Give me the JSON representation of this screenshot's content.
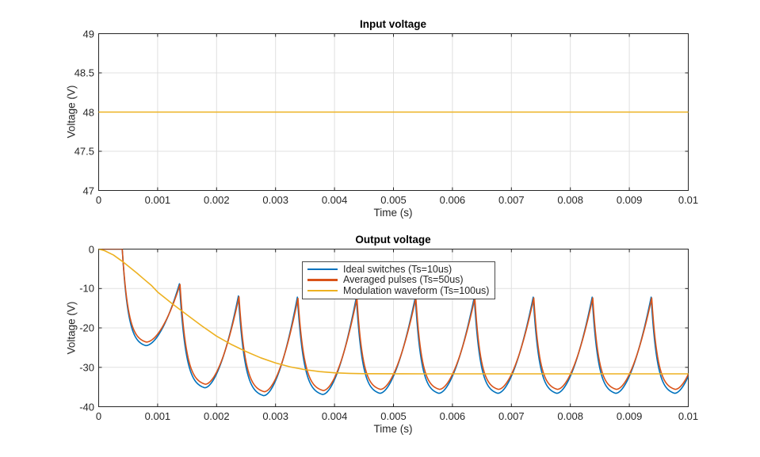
{
  "figure": {
    "background": "#ffffff"
  },
  "colors": {
    "blue": "#0072BD",
    "orange": "#D95319",
    "yellow": "#EDB120",
    "axis": "#262626",
    "grid": "#e0e0e0",
    "text": "#262626"
  },
  "chart_data": [
    {
      "type": "line",
      "title": "Input voltage",
      "xlabel": "Time (s)",
      "ylabel": "Voltage (V)",
      "xlim": [
        0,
        0.01
      ],
      "ylim": [
        47,
        49
      ],
      "grid": true,
      "xticks": [
        0,
        0.001,
        0.002,
        0.003,
        0.004,
        0.005,
        0.006,
        0.007,
        0.008,
        0.009,
        0.01
      ],
      "xtick_labels": [
        "0",
        "0.001",
        "0.002",
        "0.003",
        "0.004",
        "0.005",
        "0.006",
        "0.007",
        "0.008",
        "0.009",
        "0.01"
      ],
      "yticks": [
        47,
        47.5,
        48,
        48.5,
        49
      ],
      "ytick_labels": [
        "47",
        "47.5",
        "48",
        "48.5",
        "49"
      ],
      "series": [
        {
          "name": "Input voltage",
          "color_key": "yellow",
          "constant_value": 48
        }
      ]
    },
    {
      "type": "line",
      "title": "Output voltage",
      "xlabel": "Time (s)",
      "ylabel": "Voltage (V)",
      "xlim": [
        0,
        0.01
      ],
      "ylim": [
        -40,
        0
      ],
      "grid": true,
      "xticks": [
        0,
        0.001,
        0.002,
        0.003,
        0.004,
        0.005,
        0.006,
        0.007,
        0.008,
        0.009,
        0.01
      ],
      "xtick_labels": [
        "0",
        "0.001",
        "0.002",
        "0.003",
        "0.004",
        "0.005",
        "0.006",
        "0.007",
        "0.008",
        "0.009",
        "0.01"
      ],
      "yticks": [
        -40,
        -30,
        -20,
        -10,
        0
      ],
      "ytick_labels": [
        "-40",
        "-30",
        "-20",
        "-10",
        "0"
      ],
      "legend": {
        "position": "north",
        "entries": [
          {
            "label": "Ideal switches (Ts=10us)",
            "color_key": "blue"
          },
          {
            "label": "Averaged pulses (Ts=50us)",
            "color_key": "orange"
          },
          {
            "label": "Modulation waveform (Ts=100us)",
            "color_key": "yellow"
          }
        ]
      },
      "series": [
        {
          "name": "Ideal switches (Ts=10us)",
          "color_key": "blue",
          "waveform": "ripple",
          "anchors": [
            [
              0.0004,
              0
            ],
            [
              0.0008,
              -24.5
            ],
            [
              0.00137,
              -8.8
            ],
            [
              0.0018,
              -35.2
            ],
            [
              0.00237,
              -11.9
            ],
            [
              0.0028,
              -37.2
            ],
            [
              0.00337,
              -12.2
            ],
            [
              0.0038,
              -36.9
            ],
            [
              0.00437,
              -12.2
            ],
            [
              0.00477,
              -36.6
            ],
            [
              0.00537,
              -12.2
            ],
            [
              0.00577,
              -36.6
            ],
            [
              0.00637,
              -12.2
            ],
            [
              0.00677,
              -36.6
            ],
            [
              0.00737,
              -12.2
            ],
            [
              0.00777,
              -36.6
            ],
            [
              0.00837,
              -12.2
            ],
            [
              0.00877,
              -36.6
            ],
            [
              0.00937,
              -12.2
            ],
            [
              0.00977,
              -36.6
            ],
            [
              0.01037,
              -12.2
            ]
          ]
        },
        {
          "name": "Averaged pulses (Ts=50us)",
          "color_key": "orange",
          "waveform": "ripple",
          "anchors": [
            [
              0.0004,
              0
            ],
            [
              0.00081,
              -23.6
            ],
            [
              0.00138,
              -9.0
            ],
            [
              0.00181,
              -34.3
            ],
            [
              0.00238,
              -12.1
            ],
            [
              0.00281,
              -36.2
            ],
            [
              0.00338,
              -12.5
            ],
            [
              0.00381,
              -35.9
            ],
            [
              0.00438,
              -12.4
            ],
            [
              0.00478,
              -35.6
            ],
            [
              0.00538,
              -12.4
            ],
            [
              0.00578,
              -35.6
            ],
            [
              0.00638,
              -12.4
            ],
            [
              0.00678,
              -35.6
            ],
            [
              0.00738,
              -12.4
            ],
            [
              0.00778,
              -35.6
            ],
            [
              0.00838,
              -12.4
            ],
            [
              0.00878,
              -35.6
            ],
            [
              0.00938,
              -12.4
            ],
            [
              0.00978,
              -35.6
            ],
            [
              0.01038,
              -12.4
            ]
          ]
        },
        {
          "name": "Modulation waveform (Ts=100us)",
          "color_key": "yellow",
          "waveform": "points",
          "points": [
            [
              0,
              0
            ],
            [
              0.0001,
              -0.4
            ],
            [
              0.00025,
              -1.5
            ],
            [
              0.0004,
              -3.1
            ],
            [
              0.0005,
              -4.3
            ],
            [
              0.00065,
              -6.1
            ],
            [
              0.00075,
              -7.4
            ],
            [
              0.0009,
              -9.3
            ],
            [
              0.001,
              -10.9
            ],
            [
              0.00115,
              -12.7
            ],
            [
              0.00125,
              -13.9
            ],
            [
              0.0015,
              -16.7
            ],
            [
              0.00175,
              -19.5
            ],
            [
              0.002,
              -22.1
            ],
            [
              0.00225,
              -24.2
            ],
            [
              0.0025,
              -26.0
            ],
            [
              0.00275,
              -27.6
            ],
            [
              0.003,
              -28.9
            ],
            [
              0.00325,
              -29.9
            ],
            [
              0.0035,
              -30.6
            ],
            [
              0.00375,
              -31.1
            ],
            [
              0.004,
              -31.4
            ],
            [
              0.00425,
              -31.55
            ],
            [
              0.0045,
              -31.62
            ],
            [
              0.005,
              -31.65
            ],
            [
              0.0055,
              -31.66
            ],
            [
              0.006,
              -31.66
            ],
            [
              0.007,
              -31.66
            ],
            [
              0.008,
              -31.66
            ],
            [
              0.009,
              -31.66
            ],
            [
              0.01,
              -31.66
            ]
          ]
        }
      ]
    }
  ]
}
